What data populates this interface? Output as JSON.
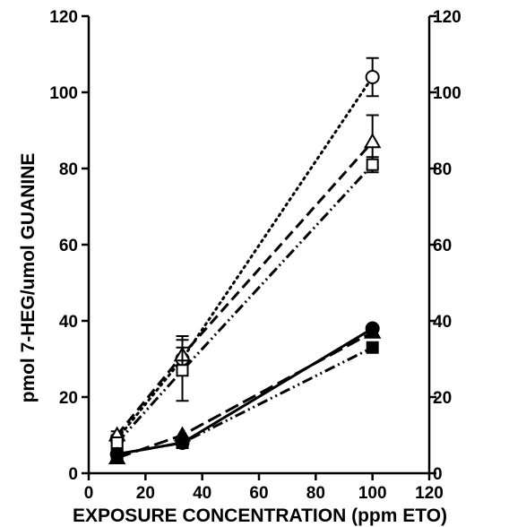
{
  "chart_data": {
    "type": "line",
    "title": "",
    "xlabel": "EXPOSURE CONCENTRATION (ppm ETO)",
    "ylabel": "pmol 7-HEG/umol GUANINE",
    "xlim": [
      0,
      120
    ],
    "ylim": [
      0,
      120
    ],
    "x_ticks": [
      "0",
      "20",
      "40",
      "60",
      "80",
      "100",
      "120"
    ],
    "y_ticks": [
      "0",
      "20",
      "40",
      "60",
      "80",
      "100",
      "120"
    ],
    "grid": false,
    "legend": "none",
    "series": [
      {
        "marker": "circle-open",
        "dash": "dotted",
        "x": [
          10,
          33,
          100
        ],
        "y": [
          9,
          30,
          104
        ],
        "err": [
          1,
          3,
          5
        ]
      },
      {
        "marker": "triangle-open",
        "dash": "dashed",
        "x": [
          10,
          33,
          100
        ],
        "y": [
          10,
          31,
          87
        ],
        "err": [
          1,
          5,
          7
        ]
      },
      {
        "marker": "square-open",
        "dash": "dashdotdot",
        "x": [
          10,
          33,
          100
        ],
        "y": [
          8,
          27,
          81
        ],
        "err": [
          1,
          8,
          2
        ]
      },
      {
        "marker": "circle-filled",
        "dash": "solid",
        "x": [
          10,
          33,
          100
        ],
        "y": [
          5,
          8,
          38
        ],
        "err": [
          0,
          0,
          0
        ]
      },
      {
        "marker": "triangle-filled",
        "dash": "longdash",
        "x": [
          10,
          33,
          100
        ],
        "y": [
          4,
          10,
          37
        ],
        "err": [
          0,
          0,
          0
        ]
      },
      {
        "marker": "square-filled",
        "dash": "dashdotdot",
        "x": [
          10,
          33,
          100
        ],
        "y": [
          5,
          8,
          33
        ],
        "err": [
          0,
          0,
          0
        ]
      }
    ]
  }
}
